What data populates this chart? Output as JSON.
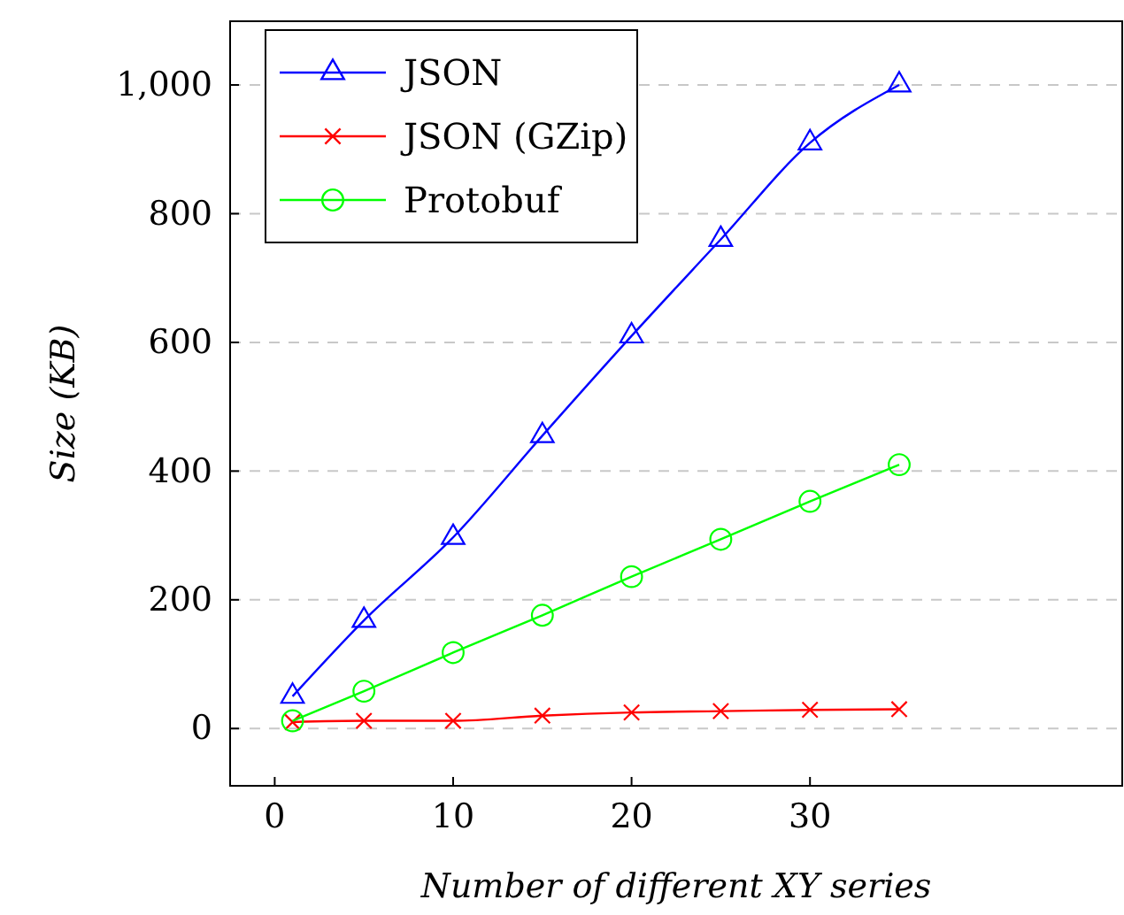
{
  "chart_data": {
    "type": "line",
    "xlabel": "Number of different XY series",
    "ylabel": "Size (KB)",
    "x": [
      1,
      5,
      10,
      15,
      20,
      25,
      30,
      35
    ],
    "series": [
      {
        "name": "JSON",
        "color": "#0000ff",
        "marker": "triangle",
        "values": [
          50,
          168,
          297,
          455,
          610,
          760,
          910,
          1000
        ]
      },
      {
        "name": "JSON (GZip)",
        "color": "#ff0000",
        "marker": "cross",
        "values": [
          10,
          12,
          12,
          20,
          25,
          27,
          29,
          30
        ]
      },
      {
        "name": "Protobuf",
        "color": "#00ff00",
        "marker": "circle",
        "values": [
          12,
          58,
          118,
          176,
          236,
          294,
          353,
          410
        ]
      }
    ],
    "xlim": [
      -2.5,
      47.5
    ],
    "xticks": [
      0,
      10,
      20,
      30
    ],
    "ylim": [
      -89,
      1099
    ],
    "yticks": [
      0,
      200,
      400,
      600,
      800,
      {
        "value": 1000,
        "label": "1,000"
      }
    ],
    "grid": "y",
    "legend": "top left"
  }
}
